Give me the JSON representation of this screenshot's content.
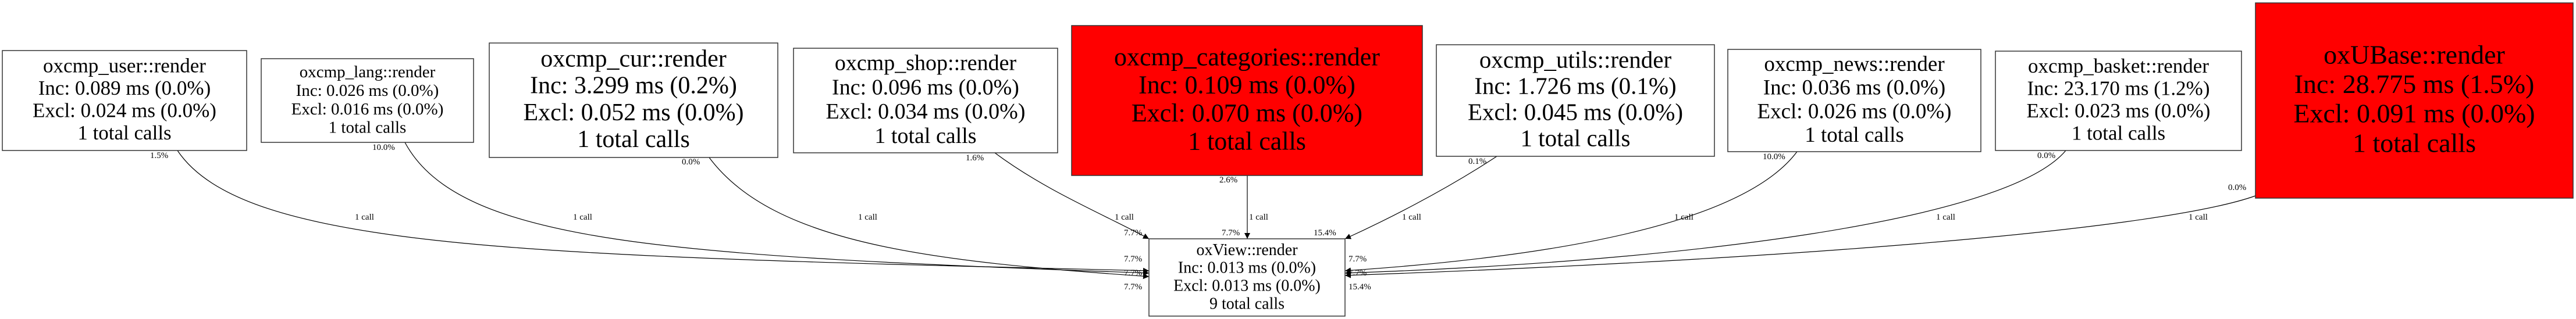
{
  "graph": {
    "colors": {
      "hot": "#ff0000",
      "normal": "#ffffff",
      "edge": "#000000"
    },
    "nodes": [
      {
        "id": "user",
        "name": "oxcmp_user::render",
        "inc": "Inc: 0.089 ms (0.0%)",
        "excl": "Excl: 0.024 ms (0.0%)",
        "calls": "1 total calls",
        "hot": false
      },
      {
        "id": "lang",
        "name": "oxcmp_lang::render",
        "inc": "Inc: 0.026 ms (0.0%)",
        "excl": "Excl: 0.016 ms (0.0%)",
        "calls": "1 total calls",
        "hot": false
      },
      {
        "id": "cur",
        "name": "oxcmp_cur::render",
        "inc": "Inc: 3.299 ms (0.2%)",
        "excl": "Excl: 0.052 ms (0.0%)",
        "calls": "1 total calls",
        "hot": false
      },
      {
        "id": "shop",
        "name": "oxcmp_shop::render",
        "inc": "Inc: 0.096 ms (0.0%)",
        "excl": "Excl: 0.034 ms (0.0%)",
        "calls": "1 total calls",
        "hot": false
      },
      {
        "id": "categories",
        "name": "oxcmp_categories::render",
        "inc": "Inc: 0.109 ms (0.0%)",
        "excl": "Excl: 0.070 ms (0.0%)",
        "calls": "1 total calls",
        "hot": true
      },
      {
        "id": "utils",
        "name": "oxcmp_utils::render",
        "inc": "Inc: 1.726 ms (0.1%)",
        "excl": "Excl: 0.045 ms (0.0%)",
        "calls": "1 total calls",
        "hot": false
      },
      {
        "id": "news",
        "name": "oxcmp_news::render",
        "inc": "Inc: 0.036 ms (0.0%)",
        "excl": "Excl: 0.026 ms (0.0%)",
        "calls": "1 total calls",
        "hot": false
      },
      {
        "id": "basket",
        "name": "oxcmp_basket::render",
        "inc": "Inc: 23.170 ms (1.2%)",
        "excl": "Excl: 0.023 ms (0.0%)",
        "calls": "1 total calls",
        "hot": false
      },
      {
        "id": "ubase",
        "name": "oxUBase::render",
        "inc": "Inc: 28.775 ms (1.5%)",
        "excl": "Excl: 0.091 ms (0.0%)",
        "calls": "1 total calls",
        "hot": true
      },
      {
        "id": "view",
        "name": "oxView::render",
        "inc": "Inc: 0.013 ms (0.0%)",
        "excl": "Excl: 0.013 ms (0.0%)",
        "calls": "9 total calls",
        "hot": false
      }
    ],
    "edges": [
      {
        "from": "user",
        "to": "view",
        "label": "1 call",
        "tail_pct": "1.5%",
        "head_pct": "7.7%"
      },
      {
        "from": "lang",
        "to": "view",
        "label": "1 call",
        "tail_pct": "10.0%",
        "head_pct": "7.7%"
      },
      {
        "from": "cur",
        "to": "view",
        "label": "1 call",
        "tail_pct": "0.0%",
        "head_pct": "7.7%"
      },
      {
        "from": "shop",
        "to": "view",
        "label": "1 call",
        "tail_pct": "1.6%",
        "head_pct": "7.7%"
      },
      {
        "from": "categories",
        "to": "view",
        "label": "1 call",
        "tail_pct": "2.6%",
        "head_pct": "7.7%"
      },
      {
        "from": "utils",
        "to": "view",
        "label": "1 call",
        "tail_pct": "0.1%",
        "head_pct": "15.4%"
      },
      {
        "from": "news",
        "to": "view",
        "label": "1 call",
        "tail_pct": "10.0%",
        "head_pct": "7.7%"
      },
      {
        "from": "basket",
        "to": "view",
        "label": "1 call",
        "tail_pct": "0.0%",
        "head_pct": "15.4%"
      },
      {
        "from": "ubase",
        "to": "view",
        "label": "1 call",
        "tail_pct": "0.0%",
        "head_pct": "7.7%"
      }
    ]
  }
}
